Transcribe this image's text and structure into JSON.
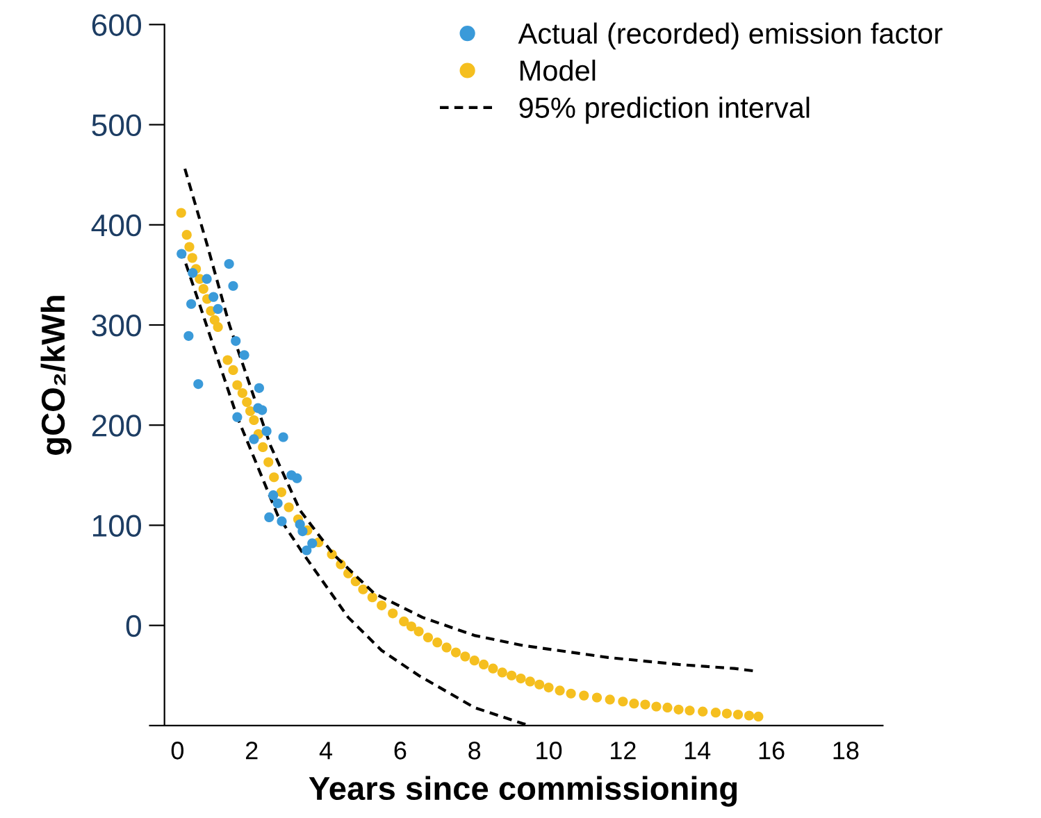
{
  "chart_data": {
    "type": "scatter",
    "xlabel": "Years since commissioning",
    "ylabel": "gCO₂/kWh",
    "xlim": [
      -0.35,
      19
    ],
    "ylim": [
      -100,
      600
    ],
    "xticks": [
      0,
      2,
      4,
      6,
      8,
      10,
      12,
      14,
      16,
      18
    ],
    "yticks": [
      {
        "value": -100,
        "label": null
      },
      0,
      100,
      200,
      300,
      400,
      500,
      600
    ],
    "grid": false,
    "legend": "top right",
    "series": [
      {
        "name": "Actual (recorded) emission factor",
        "marker": "circle",
        "color": "#3a9ad9",
        "x": [
          0.11,
          1.39,
          0.41,
          0.79,
          1.5,
          0.37,
          0.97,
          1.09,
          0.3,
          1.57,
          1.8,
          0.56,
          2.2,
          1.61,
          2.17,
          2.28,
          2.4,
          2.06,
          2.85,
          3.07,
          3.22,
          2.58,
          2.7,
          2.47,
          2.81,
          3.3,
          3.37,
          3.63,
          3.48
        ],
        "values": [
          371,
          361,
          352,
          346,
          339,
          321,
          328,
          316,
          289,
          284,
          270,
          241,
          237,
          208,
          217,
          215,
          194,
          186,
          188,
          150,
          147,
          130,
          122,
          108,
          104,
          101,
          94,
          82,
          75
        ]
      },
      {
        "name": "Model",
        "marker": "circle",
        "color": "#f5bf1f",
        "x": [
          0.1,
          0.25,
          0.32,
          0.4,
          0.5,
          0.6,
          0.7,
          0.8,
          0.9,
          1.0,
          1.09,
          1.35,
          1.5,
          1.61,
          1.75,
          1.87,
          1.96,
          2.06,
          2.18,
          2.3,
          2.45,
          2.6,
          2.8,
          3.0,
          3.25,
          3.5,
          3.8,
          4.16,
          4.4,
          4.6,
          4.8,
          5.0,
          5.25,
          5.5,
          5.8,
          6.1,
          6.3,
          6.5,
          6.75,
          7.0,
          7.25,
          7.5,
          7.75,
          8.0,
          8.25,
          8.5,
          8.75,
          9.0,
          9.25,
          9.5,
          9.75,
          10.0,
          10.3,
          10.6,
          10.95,
          11.3,
          11.65,
          12.0,
          12.3,
          12.6,
          12.9,
          13.2,
          13.5,
          13.8,
          14.15,
          14.5,
          14.8,
          15.1,
          15.4,
          15.65
        ],
        "values": [
          412,
          390,
          378,
          367,
          356,
          346,
          336,
          326,
          314,
          305,
          298,
          265,
          255,
          240,
          232,
          223,
          214,
          205,
          191,
          178,
          163,
          148,
          133,
          118,
          106,
          95,
          83,
          71,
          61,
          52,
          44,
          36,
          28,
          20,
          12,
          4,
          -1,
          -6,
          -12,
          -17,
          -22,
          -27,
          -31,
          -35,
          -39,
          -43,
          -47,
          -50,
          -53,
          -56,
          -59,
          -62,
          -65,
          -68,
          -70,
          -72,
          -74,
          -76,
          -78,
          -79,
          -81,
          -82,
          -84,
          -85,
          -86,
          -87,
          -88,
          -89,
          -90,
          -91
        ]
      },
      {
        "name": "95% prediction interval",
        "type": "line",
        "marker": "none",
        "color": "#000000",
        "line_style": "dashed",
        "x": [
          0.2,
          0.8,
          1.4,
          2.5,
          3.3,
          4.2,
          5.3,
          6.6,
          8.0,
          9.3,
          11.6,
          13.5,
          15.0,
          15.65
        ],
        "values": [
          456,
          380,
          300,
          180,
          115,
          71,
          32,
          8,
          -10,
          -20,
          -32,
          -39,
          -43,
          -46
        ]
      },
      {
        "type": "line",
        "marker": "none",
        "color": "#000000",
        "line_style": "dashed",
        "x": [
          0.1,
          0.6,
          1.6,
          2.7,
          3.4,
          4.6,
          5.5,
          6.5,
          8.0,
          9.3,
          9.5
        ],
        "values": [
          375,
          320,
          209,
          110,
          71,
          8,
          -25,
          -50,
          -82,
          -98,
          -100
        ]
      }
    ]
  }
}
